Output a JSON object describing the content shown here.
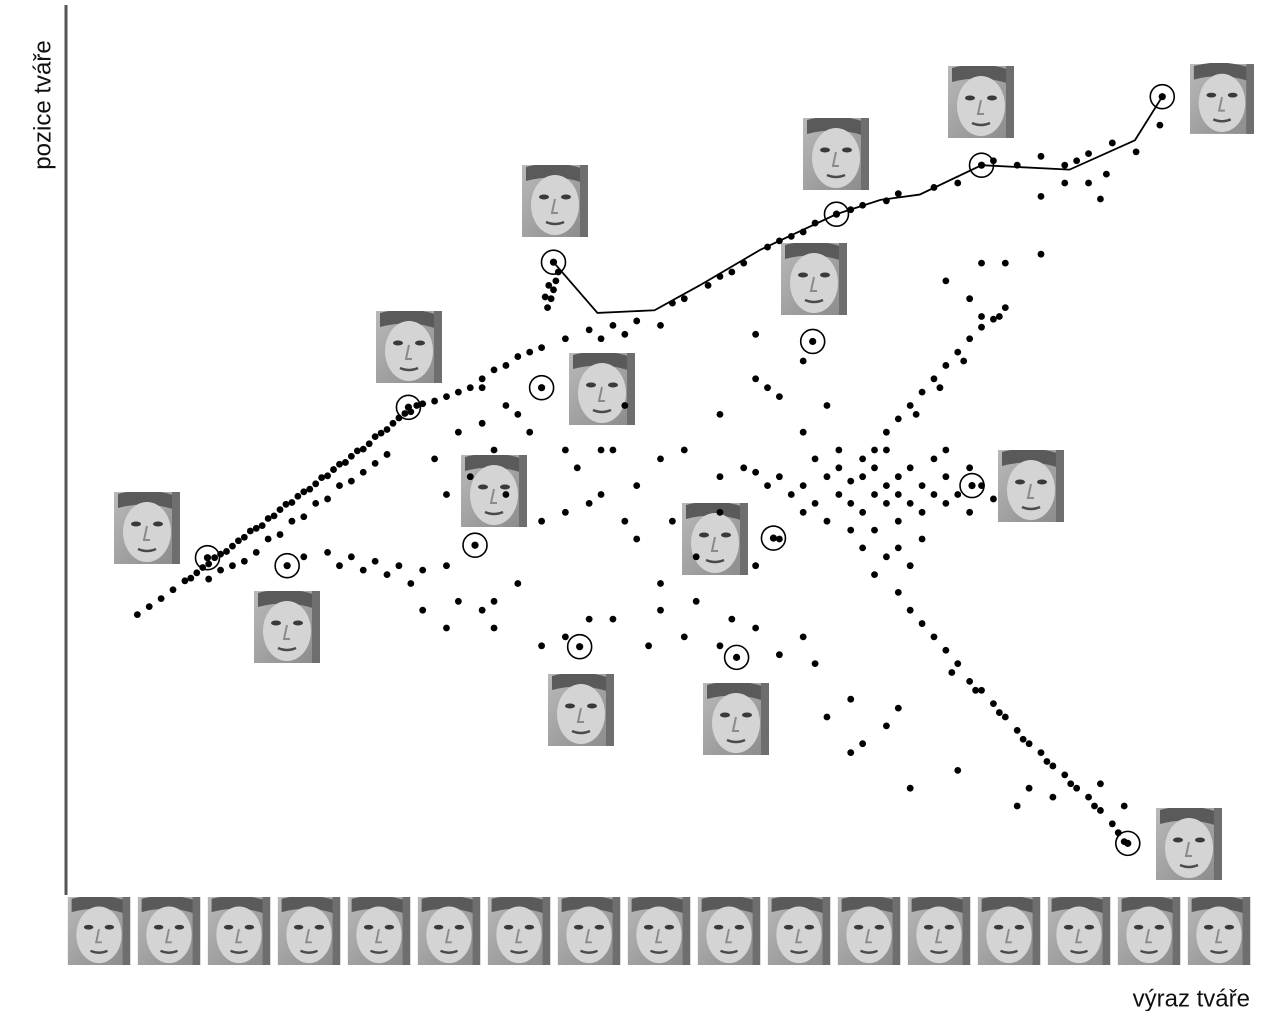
{
  "chart_data": {
    "type": "scatter",
    "y_label": "pozice tváře",
    "x_label": "výraz tváře",
    "xlim": [
      0,
      100
    ],
    "ylim": [
      0,
      100
    ],
    "color": "#000000",
    "x": [
      6,
      7,
      8,
      9,
      10,
      10.5,
      11,
      11.5,
      12,
      12.5,
      13,
      13.5,
      14,
      14.5,
      15,
      15.5,
      16,
      16.5,
      17,
      17.5,
      18,
      18.5,
      19,
      19.5,
      20,
      20.5,
      21,
      21.5,
      22,
      22.5,
      23,
      23.5,
      24,
      24.5,
      25,
      25.5,
      26,
      26.5,
      27,
      27.5,
      28,
      28.5,
      29,
      29.5,
      30,
      31,
      12,
      14,
      16,
      17,
      18,
      19,
      20,
      21,
      22,
      23,
      24,
      25,
      26,
      27,
      13,
      15,
      32,
      33,
      34,
      35,
      36,
      37,
      38,
      39,
      40,
      42,
      44,
      46,
      48,
      50,
      47,
      45,
      33,
      35,
      36,
      38,
      31,
      32,
      34,
      37,
      40.5,
      40.8,
      41,
      41.2,
      40.6,
      40.3,
      41.4,
      51,
      52,
      54,
      55,
      56,
      57,
      59,
      60,
      61,
      62,
      63,
      66,
      67,
      69,
      70,
      73,
      75,
      78,
      80,
      82,
      84,
      85,
      86,
      88,
      87.5,
      86,
      84,
      82,
      87,
      90,
      92,
      68,
      69,
      70,
      71,
      72,
      73,
      74,
      75,
      76,
      77,
      78,
      79,
      78.5,
      75.5,
      73.5,
      71.5,
      77,
      79,
      82,
      77,
      74,
      76,
      60,
      61,
      62,
      63,
      64,
      64,
      65,
      65,
      66,
      66,
      67,
      67,
      67,
      68,
      68,
      68,
      69,
      69,
      69,
      70,
      70,
      70,
      71,
      71,
      72,
      72,
      73,
      73,
      74,
      74,
      75,
      76,
      76,
      66,
      67,
      69,
      70,
      68,
      71,
      72,
      65,
      63,
      62,
      74,
      77,
      78,
      57,
      58,
      59,
      70,
      71,
      72,
      73,
      74,
      75,
      76,
      77,
      78,
      79,
      80,
      81,
      82,
      83,
      84,
      85,
      86,
      87,
      88,
      89,
      88.5,
      86.5,
      84.5,
      82.5,
      80.5,
      78.5,
      76.5,
      74.5,
      81,
      80,
      83,
      87,
      89,
      62,
      63,
      66,
      64,
      67,
      69,
      70,
      75,
      71,
      66,
      60,
      58,
      56,
      55,
      52,
      49,
      50,
      53,
      55,
      51,
      48,
      47,
      45,
      45,
      43,
      42,
      40,
      38,
      36,
      35,
      33,
      32,
      30,
      28,
      26,
      24,
      22,
      20,
      27,
      25,
      23,
      32,
      29,
      30,
      36,
      40,
      42,
      44,
      46,
      50,
      53,
      48,
      46,
      50,
      55,
      58,
      60,
      62,
      64,
      58,
      60,
      35,
      37,
      39,
      42,
      44,
      47,
      52,
      55,
      58,
      59,
      62
    ],
    "y": [
      31.5,
      32.4,
      33.3,
      34.3,
      35.3,
      35.6,
      36.2,
      36.8,
      37.2,
      37.9,
      38.3,
      38.6,
      39.2,
      39.8,
      40.2,
      40.9,
      41.2,
      41.5,
      42.3,
      42.6,
      43.3,
      43.9,
      44.1,
      44.8,
      45.3,
      45.6,
      46.2,
      46.9,
      47.1,
      47.8,
      48.4,
      48.6,
      49.3,
      49.9,
      50.1,
      50.7,
      51.5,
      51.9,
      52.3,
      53,
      53.6,
      54.1,
      54.3,
      55,
      55.2,
      55.5,
      35.5,
      37,
      38.5,
      40,
      40.5,
      42,
      42.5,
      44,
      44.5,
      46,
      46.5,
      47.5,
      48.5,
      49.5,
      36.5,
      37.5,
      56,
      56.5,
      57,
      58,
      59,
      59.5,
      60.5,
      61,
      61.5,
      62.5,
      63.5,
      64,
      64.5,
      64,
      63,
      62.5,
      52,
      53,
      50,
      54,
      49,
      45,
      47,
      45,
      66,
      67,
      68,
      69,
      68.5,
      67.2,
      70,
      66.5,
      67,
      68.5,
      69.5,
      70,
      71,
      72.8,
      73.5,
      74,
      74.5,
      75.5,
      77,
      77.5,
      78,
      78.8,
      79.5,
      80,
      82.5,
      82,
      83,
      82,
      82.5,
      83.3,
      84.5,
      81,
      80,
      80,
      78.5,
      78.2,
      83.5,
      86.5,
      50,
      52,
      53.5,
      55,
      56.5,
      58,
      59.5,
      61,
      62.5,
      63.8,
      64.7,
      66,
      65,
      60,
      57,
      54,
      71,
      71,
      72,
      65,
      69,
      67,
      47,
      45,
      46,
      44,
      47,
      42,
      45,
      48,
      44,
      46.5,
      43,
      47,
      49,
      45,
      41,
      48,
      44,
      46,
      50,
      42,
      47,
      45,
      44,
      48,
      46,
      43,
      45,
      49,
      44,
      47,
      45,
      43,
      48,
      41,
      39,
      38,
      39,
      36,
      37,
      40,
      50,
      49,
      43,
      50,
      46,
      44.5,
      48,
      47.5,
      46,
      34,
      32,
      30.5,
      29,
      27.5,
      26,
      24,
      23,
      21.5,
      20,
      18.5,
      17,
      16,
      14.5,
      13.5,
      12,
      11,
      9.5,
      8,
      6,
      7,
      10,
      12.5,
      15,
      17.5,
      20.5,
      23,
      25,
      12,
      10,
      11,
      12.5,
      10,
      29,
      26,
      22,
      20,
      17,
      19,
      21,
      14,
      12,
      16,
      27,
      30,
      31,
      28,
      29,
      28,
      35,
      38,
      43,
      42,
      40,
      42,
      45,
      50,
      48,
      43,
      42,
      35,
      33,
      32,
      33,
      30,
      32,
      37,
      37.5,
      38,
      38.5,
      38,
      36,
      36.5,
      37,
      37,
      35,
      36.5,
      30,
      28,
      29,
      31,
      31,
      32,
      33,
      46,
      50,
      49,
      54,
      58,
      56,
      52,
      55,
      37,
      40,
      57,
      55,
      52,
      50,
      44,
      55,
      50,
      47,
      63,
      57,
      60
    ],
    "circled": {
      "x": [
        92.2,
        77.0,
        64.8,
        41.0,
        62.8,
        40.0,
        28.8,
        11.9,
        18.6,
        34.4,
        43.2,
        56.4,
        59.5,
        76.2,
        89.3
      ],
      "y": [
        89.7,
        82.0,
        76.5,
        71.1,
        62.2,
        57.0,
        54.8,
        37.9,
        37.0,
        39.3,
        27.9,
        26.7,
        40.1,
        46.0,
        5.8
      ]
    },
    "line": {
      "x": [
        41.0,
        44.7,
        49.5,
        53.3,
        58.4,
        64.8,
        68.5,
        71.8,
        77.0,
        84.4,
        89.9,
        92.2
      ],
      "y": [
        71.1,
        65.4,
        65.7,
        68.5,
        72.5,
        76.5,
        78.1,
        78.7,
        82.0,
        81.5,
        84.8,
        89.7
      ]
    }
  }
}
